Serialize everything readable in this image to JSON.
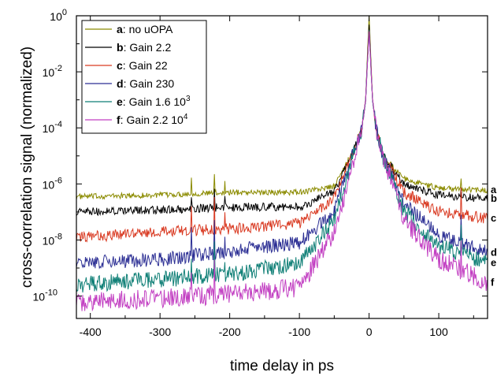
{
  "chart_data": {
    "type": "line",
    "xlabel": "time delay in ps",
    "ylabel": "cross-correlation signal (normalized)",
    "xlim": [
      -420,
      170
    ],
    "ylim_log10": [
      -10.8,
      0
    ],
    "y_scale": "log",
    "x_ticks": [
      -400,
      -300,
      -200,
      -100,
      0,
      100
    ],
    "y_ticks": [
      {
        "mantissa": "10",
        "exponent": "0",
        "value": 1
      },
      {
        "mantissa": "10",
        "exponent": "-2",
        "value": 0.01
      },
      {
        "mantissa": "10",
        "exponent": "-4",
        "value": 0.0001
      },
      {
        "mantissa": "10",
        "exponent": "-6",
        "value": 1e-06
      },
      {
        "mantissa": "10",
        "exponent": "-8",
        "value": 1e-08
      },
      {
        "mantissa": "10",
        "exponent": "-10",
        "value": 1e-10
      }
    ],
    "legend_position": "top-left",
    "grid": false,
    "series": [
      {
        "key": "a",
        "name": "no uOPA",
        "exp": "",
        "end_label": "a",
        "color": "#8b8b00",
        "x": [
          -420,
          -300,
          -200,
          -100,
          -50,
          -20,
          -10,
          -5,
          0,
          5,
          10,
          20,
          50,
          100,
          170
        ],
        "y": [
          3.5e-07,
          4e-07,
          5e-07,
          5e-07,
          8e-07,
          2e-05,
          0.0001,
          0.001,
          1,
          0.001,
          0.0001,
          1e-05,
          1.5e-06,
          7e-07,
          6e-07
        ]
      },
      {
        "key": "b",
        "name": "Gain 2.2",
        "exp": "",
        "end_label": "b",
        "color": "#000000",
        "x": [
          -420,
          -300,
          -200,
          -100,
          -50,
          -20,
          -10,
          -5,
          0,
          5,
          10,
          20,
          50,
          100,
          170
        ],
        "y": [
          1e-07,
          1.2e-07,
          1.5e-07,
          1.5e-07,
          5e-07,
          2e-05,
          0.0001,
          0.001,
          0.5,
          0.001,
          0.0001,
          1e-05,
          1e-06,
          4e-07,
          3e-07
        ]
      },
      {
        "key": "c",
        "name": "Gain 22",
        "exp": "",
        "end_label": "c",
        "color": "#d93a22",
        "x": [
          -420,
          -300,
          -200,
          -100,
          -50,
          -20,
          -10,
          -5,
          0,
          5,
          10,
          20,
          50,
          100,
          170
        ],
        "y": [
          1.2e-08,
          2e-08,
          2.5e-08,
          4e-08,
          3e-07,
          2e-05,
          0.0001,
          0.001,
          0.3,
          0.001,
          0.0001,
          1e-05,
          5e-07,
          1e-07,
          6e-08
        ]
      },
      {
        "key": "d",
        "name": "Gain 230",
        "exp": "",
        "end_label": "d",
        "color": "#2c2f94",
        "x": [
          -420,
          -300,
          -200,
          -100,
          -50,
          -20,
          -10,
          -5,
          0,
          5,
          10,
          20,
          50,
          100,
          170
        ],
        "y": [
          1.5e-09,
          2e-09,
          4e-09,
          8e-09,
          1e-07,
          2e-05,
          0.0001,
          0.001,
          0.3,
          0.001,
          0.0001,
          1e-05,
          2e-07,
          1.5e-08,
          3.5e-09
        ]
      },
      {
        "key": "e",
        "name": "Gain 1.6 10",
        "exp": "3",
        "end_label": "e",
        "color": "#0f7f76",
        "x": [
          -420,
          -300,
          -200,
          -100,
          -50,
          -20,
          -10,
          -5,
          0,
          5,
          10,
          20,
          50,
          100,
          170
        ],
        "y": [
          2.5e-10,
          4e-10,
          6e-10,
          1.5e-09,
          5e-08,
          2e-05,
          0.0001,
          0.001,
          0.3,
          0.001,
          0.0001,
          1e-05,
          1e-07,
          6e-09,
          1.5e-09
        ]
      },
      {
        "key": "f",
        "name": " Gain 2.2 10",
        "exp": "4",
        "end_label": "f",
        "color": "#c23fc2",
        "x": [
          -420,
          -300,
          -200,
          -100,
          -50,
          -20,
          -10,
          -5,
          0,
          5,
          10,
          20,
          50,
          100,
          170
        ],
        "y": [
          6e-11,
          8e-11,
          1.2e-10,
          2e-10,
          2e-08,
          1e-05,
          0.0001,
          0.001,
          0.3,
          0.001,
          0.0001,
          1e-05,
          5e-08,
          2e-09,
          3e-10
        ]
      }
    ],
    "spikes": [
      {
        "x": -255,
        "factor": 8
      },
      {
        "x": -222,
        "factor": 15
      },
      {
        "x": -207,
        "factor": 4
      },
      {
        "x": 132,
        "factor": 6
      }
    ]
  }
}
